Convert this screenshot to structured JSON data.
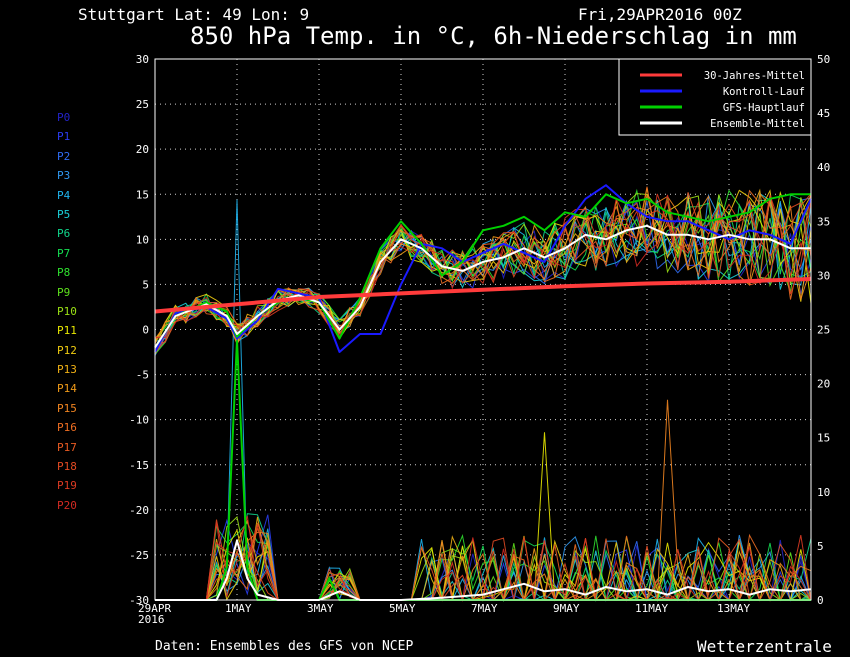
{
  "header": {
    "location": "Stuttgart   Lat: 49 Lon: 9",
    "run_date": "Fri,29APR2016 00Z",
    "title": "850 hPa Temp. in °C, 6h-Niederschlag in mm"
  },
  "footer": {
    "source": "Daten: Ensembles des GFS von NCEP",
    "brand": "Wetterzentrale"
  },
  "colors": {
    "climate": "#ff3b3b",
    "control": "#1a1aff",
    "gfs": "#00d000",
    "mean": "#ffffff"
  },
  "members": [
    {
      "label": "P0",
      "color": "#2323c8"
    },
    {
      "label": "P1",
      "color": "#2a3df0"
    },
    {
      "label": "P2",
      "color": "#2f6cf2"
    },
    {
      "label": "P3",
      "color": "#2f97f0"
    },
    {
      "label": "P4",
      "color": "#1fb4ee"
    },
    {
      "label": "P5",
      "color": "#19cfd8"
    },
    {
      "label": "P6",
      "color": "#10d48a"
    },
    {
      "label": "P7",
      "color": "#14dd52"
    },
    {
      "label": "P8",
      "color": "#2ee02e"
    },
    {
      "label": "P9",
      "color": "#5de01c"
    },
    {
      "label": "P10",
      "color": "#9ae014"
    },
    {
      "label": "P11",
      "color": "#e8e800"
    },
    {
      "label": "P12",
      "color": "#f0cc10"
    },
    {
      "label": "P13",
      "color": "#f0b014"
    },
    {
      "label": "P14",
      "color": "#f09a18"
    },
    {
      "label": "P15",
      "color": "#f08420"
    },
    {
      "label": "P16",
      "color": "#ee6e22"
    },
    {
      "label": "P17",
      "color": "#e85a22"
    },
    {
      "label": "P18",
      "color": "#e24a22"
    },
    {
      "label": "P19",
      "color": "#dc3a22"
    },
    {
      "label": "P20",
      "color": "#d22a22"
    }
  ],
  "chart_data": {
    "type": "line",
    "x_ticks": [
      "29APR\n2016",
      "1MAY",
      "3MAY",
      "5MAY",
      "7MAY",
      "9MAY",
      "11MAY",
      "13MAY"
    ],
    "x_range_days": [
      0,
      16
    ],
    "y_left": {
      "range": [
        -30,
        30
      ],
      "ticks": [
        30,
        25,
        20,
        15,
        10,
        5,
        0,
        -5,
        -10,
        -15,
        -20,
        -25,
        -30
      ]
    },
    "y_right": {
      "range": [
        0,
        50
      ],
      "ticks": [
        50,
        45,
        40,
        35,
        30,
        25,
        20,
        15,
        10,
        5,
        0
      ]
    },
    "grid": true,
    "legend_position": "top-right",
    "legend": [
      {
        "label": "30-Jahres-Mittel",
        "color": "#ff3b3b"
      },
      {
        "label": "Kontroll-Lauf",
        "color": "#1a1aff"
      },
      {
        "label": "GFS-Hauptlauf",
        "color": "#00d000"
      },
      {
        "label": "Ensemble-Mittel",
        "color": "#ffffff"
      }
    ],
    "climate_mean_temp": [
      [
        0,
        2.0
      ],
      [
        2,
        2.8
      ],
      [
        4,
        3.6
      ],
      [
        6,
        4.0
      ],
      [
        8,
        4.4
      ],
      [
        10,
        4.8
      ],
      [
        12,
        5.1
      ],
      [
        14,
        5.3
      ],
      [
        16,
        5.6
      ]
    ],
    "ensemble_mean_temp": [
      [
        0,
        -2.0
      ],
      [
        0.5,
        1.5
      ],
      [
        1.25,
        2.8
      ],
      [
        1.75,
        1.5
      ],
      [
        2,
        -0.5
      ],
      [
        2.5,
        1.5
      ],
      [
        3,
        3.2
      ],
      [
        3.5,
        3.8
      ],
      [
        4,
        3.0
      ],
      [
        4.5,
        0.0
      ],
      [
        5,
        2.5
      ],
      [
        5.5,
        7.5
      ],
      [
        6,
        10.0
      ],
      [
        6.5,
        9.0
      ],
      [
        7,
        7.0
      ],
      [
        7.5,
        6.5
      ],
      [
        8,
        7.5
      ],
      [
        8.5,
        8.0
      ],
      [
        9,
        9.0
      ],
      [
        9.5,
        8.0
      ],
      [
        10,
        9.0
      ],
      [
        10.5,
        10.5
      ],
      [
        11,
        10.0
      ],
      [
        11.5,
        11.0
      ],
      [
        12,
        11.5
      ],
      [
        12.5,
        10.5
      ],
      [
        13,
        10.5
      ],
      [
        13.5,
        10.0
      ],
      [
        14,
        10.5
      ],
      [
        14.5,
        10.0
      ],
      [
        15,
        10.0
      ],
      [
        15.5,
        9.0
      ],
      [
        16,
        9.0
      ]
    ],
    "control_temp": [
      [
        0,
        -2.5
      ],
      [
        0.5,
        1.8
      ],
      [
        1.25,
        2.5
      ],
      [
        1.75,
        1.2
      ],
      [
        2,
        -1.0
      ],
      [
        2.5,
        1.0
      ],
      [
        3,
        4.5
      ],
      [
        3.5,
        4.0
      ],
      [
        4,
        3.5
      ],
      [
        4.5,
        -2.5
      ],
      [
        5,
        -0.5
      ],
      [
        5.5,
        -0.5
      ],
      [
        6,
        5.0
      ],
      [
        6.5,
        9.5
      ],
      [
        7,
        9.0
      ],
      [
        7.5,
        7.5
      ],
      [
        8,
        8.5
      ],
      [
        8.5,
        9.5
      ],
      [
        9,
        8.5
      ],
      [
        9.5,
        7.5
      ],
      [
        10,
        11.5
      ],
      [
        10.5,
        14.5
      ],
      [
        11,
        16.0
      ],
      [
        11.5,
        14.0
      ],
      [
        12,
        12.5
      ],
      [
        12.5,
        12.0
      ],
      [
        13,
        12.0
      ],
      [
        13.5,
        11.0
      ],
      [
        14,
        10.0
      ],
      [
        14.5,
        11.0
      ],
      [
        15,
        10.5
      ],
      [
        15.5,
        9.5
      ],
      [
        16,
        14.5
      ]
    ],
    "gfs_temp": [
      [
        0,
        -2.0
      ],
      [
        0.5,
        1.5
      ],
      [
        1.25,
        3.0
      ],
      [
        1.75,
        2.0
      ],
      [
        2,
        -0.8
      ],
      [
        2.5,
        1.5
      ],
      [
        3,
        3.0
      ],
      [
        3.5,
        3.5
      ],
      [
        4,
        3.0
      ],
      [
        4.5,
        -1.0
      ],
      [
        5,
        3.5
      ],
      [
        5.5,
        9.0
      ],
      [
        6,
        12.0
      ],
      [
        6.5,
        9.5
      ],
      [
        7,
        6.0
      ],
      [
        7.5,
        7.5
      ],
      [
        8,
        11.0
      ],
      [
        8.5,
        11.5
      ],
      [
        9,
        12.5
      ],
      [
        9.5,
        11.0
      ],
      [
        10,
        13.0
      ],
      [
        10.5,
        12.5
      ],
      [
        11,
        15.0
      ],
      [
        11.5,
        14.0
      ],
      [
        12,
        14.5
      ],
      [
        12.5,
        13.0
      ],
      [
        13,
        12.5
      ],
      [
        13.5,
        12.0
      ],
      [
        14,
        12.5
      ],
      [
        14.5,
        13.0
      ],
      [
        15,
        14.5
      ],
      [
        15.5,
        15.0
      ],
      [
        16,
        15.0
      ]
    ],
    "ensemble_mean_precip": [
      [
        0,
        0
      ],
      [
        1.5,
        0
      ],
      [
        1.75,
        2.0
      ],
      [
        2,
        5.5
      ],
      [
        2.25,
        2.0
      ],
      [
        2.5,
        0.5
      ],
      [
        3,
        0
      ],
      [
        4,
        0
      ],
      [
        4.5,
        0.8
      ],
      [
        5,
        0
      ],
      [
        6,
        0
      ],
      [
        7,
        0.2
      ],
      [
        8,
        0.5
      ],
      [
        8.5,
        1.0
      ],
      [
        9,
        1.5
      ],
      [
        9.5,
        0.8
      ],
      [
        10,
        1.0
      ],
      [
        10.5,
        0.5
      ],
      [
        11,
        1.2
      ],
      [
        11.5,
        0.8
      ],
      [
        12,
        1.0
      ],
      [
        12.5,
        0.5
      ],
      [
        13,
        1.2
      ],
      [
        13.5,
        0.8
      ],
      [
        14,
        1.0
      ],
      [
        14.5,
        0.5
      ],
      [
        15,
        1.0
      ],
      [
        15.5,
        0.8
      ],
      [
        16,
        1.0
      ]
    ],
    "notable_precip_peaks": [
      {
        "member": "P4",
        "day": 2.0,
        "mm": 37.0
      },
      {
        "member": "GFS-Hauptlauf",
        "day": 2.0,
        "mm": 24.0
      },
      {
        "member": "P11",
        "day": 9.5,
        "mm": 15.5
      },
      {
        "member": "P15",
        "day": 12.5,
        "mm": 18.5
      }
    ]
  }
}
